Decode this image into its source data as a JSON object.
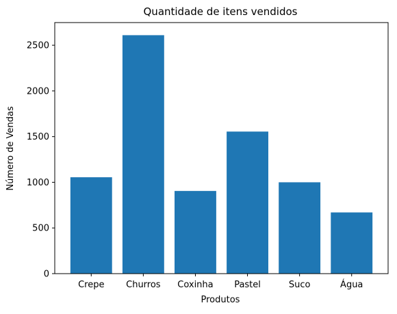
{
  "chart_data": {
    "type": "bar",
    "title": "Quantidade de itens vendidos",
    "xlabel": "Produtos",
    "ylabel": "Número de Vendas",
    "categories": [
      "Crepe",
      "Churros",
      "Coxinha",
      "Pastel",
      "Suco",
      "Água"
    ],
    "values": [
      1055,
      2610,
      905,
      1555,
      1000,
      670
    ],
    "ylim": [
      0,
      2748
    ],
    "yticks": [
      0,
      500,
      1000,
      1500,
      2000,
      2500
    ],
    "grid": false,
    "legend": "none",
    "bar_color": "#1f77b4"
  }
}
